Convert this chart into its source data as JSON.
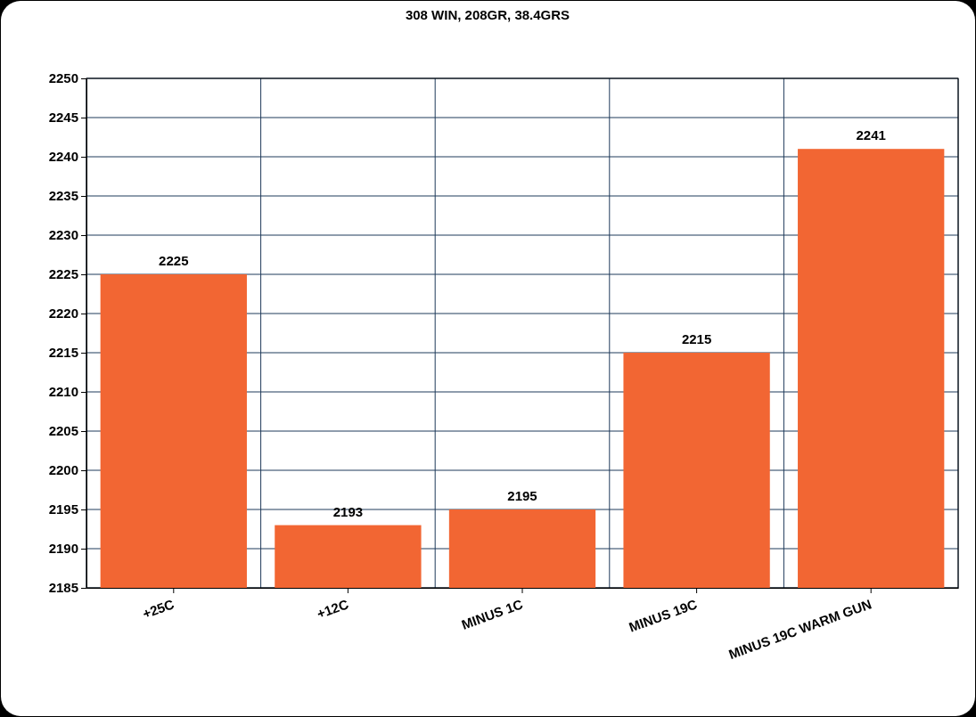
{
  "chart_data": {
    "type": "bar",
    "title": "308 WIN, 208GR, 38.4GRS",
    "categories": [
      "+25C",
      "+12C",
      "MINUS 1C",
      "MINUS 19C",
      "MINUS 19C WARM GUN"
    ],
    "values": [
      2225,
      2193,
      2195,
      2215,
      2241
    ],
    "color": "#f26633",
    "ylim": [
      2185,
      2250
    ],
    "yticks": [
      2185,
      2190,
      2195,
      2200,
      2205,
      2210,
      2215,
      2220,
      2225,
      2230,
      2235,
      2240,
      2245,
      2250
    ],
    "grid": true,
    "data_labels": true
  }
}
